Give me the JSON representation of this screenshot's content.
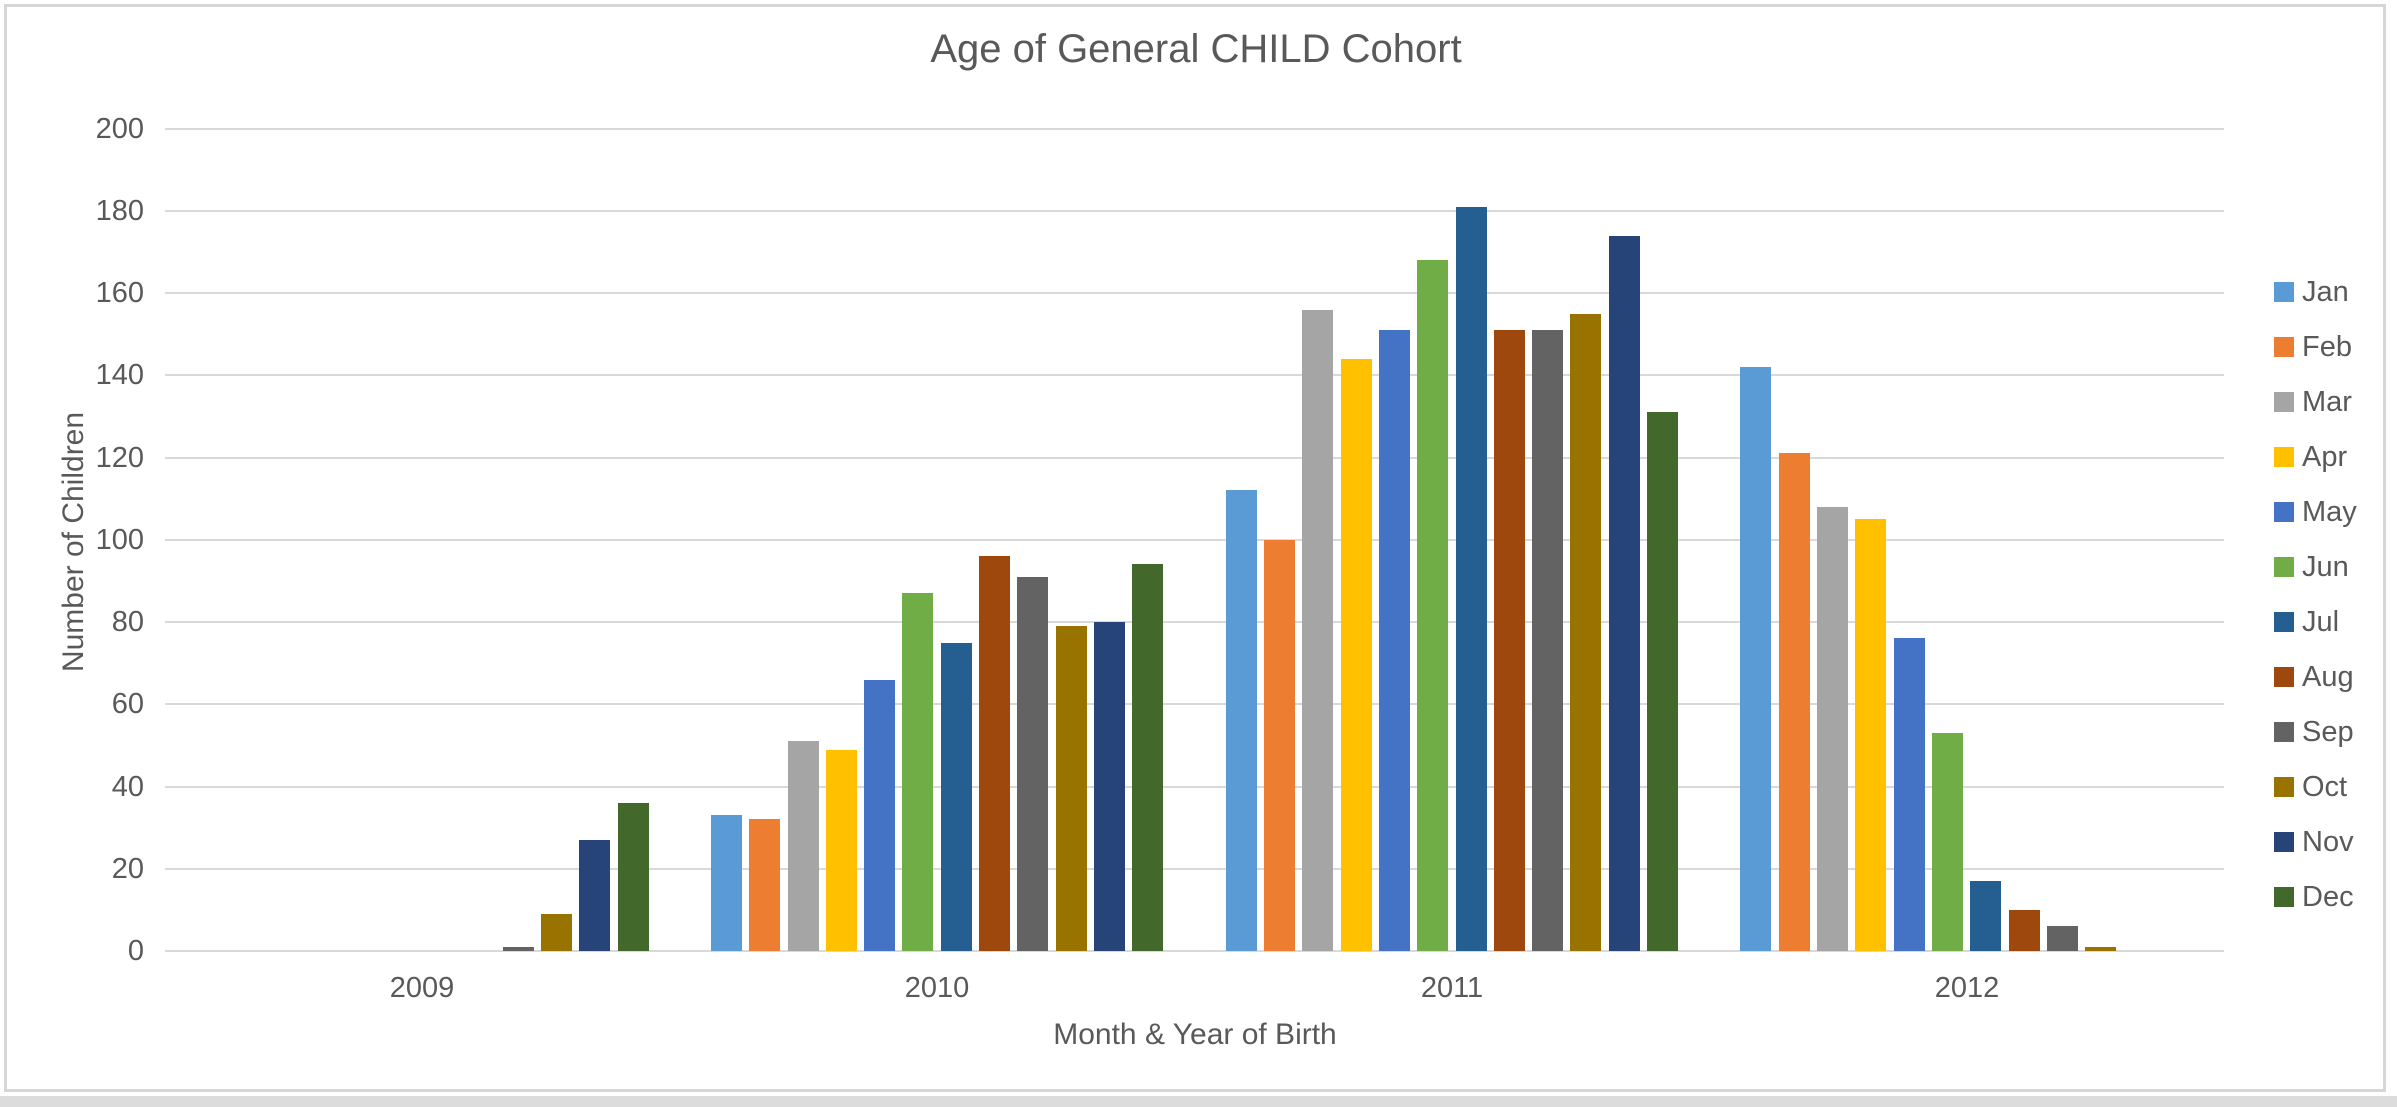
{
  "chart_data": {
    "type": "bar",
    "title": "Age of General CHILD Cohort",
    "xlabel": "Month & Year of Birth",
    "ylabel": "Number of Children",
    "ylim": [
      0,
      200
    ],
    "y_tick_step": 20,
    "y_ticks": [
      0,
      20,
      40,
      60,
      80,
      100,
      120,
      140,
      160,
      180,
      200
    ],
    "grid": true,
    "legend_position": "right",
    "categories": [
      "2009",
      "2010",
      "2011",
      "2012"
    ],
    "series": [
      {
        "name": "Jan",
        "color": "#5B9BD5",
        "values": [
          0,
          33,
          112,
          142
        ]
      },
      {
        "name": "Feb",
        "color": "#ED7D31",
        "values": [
          0,
          32,
          100,
          121
        ]
      },
      {
        "name": "Mar",
        "color": "#A5A5A5",
        "values": [
          0,
          51,
          156,
          108
        ]
      },
      {
        "name": "Apr",
        "color": "#FFC000",
        "values": [
          0,
          49,
          144,
          105
        ]
      },
      {
        "name": "May",
        "color": "#4472C4",
        "values": [
          0,
          66,
          151,
          76
        ]
      },
      {
        "name": "Jun",
        "color": "#70AD47",
        "values": [
          0,
          87,
          168,
          53
        ]
      },
      {
        "name": "Jul",
        "color": "#255E91",
        "values": [
          0,
          75,
          181,
          17
        ]
      },
      {
        "name": "Aug",
        "color": "#9E480E",
        "values": [
          0,
          96,
          151,
          10
        ]
      },
      {
        "name": "Sep",
        "color": "#636363",
        "values": [
          1,
          91,
          151,
          6
        ]
      },
      {
        "name": "Oct",
        "color": "#997300",
        "values": [
          9,
          79,
          155,
          1
        ]
      },
      {
        "name": "Nov",
        "color": "#264478",
        "values": [
          27,
          80,
          174,
          0
        ]
      },
      {
        "name": "Dec",
        "color": "#43682B",
        "values": [
          36,
          94,
          131,
          0
        ]
      }
    ]
  },
  "colors": {
    "text": "#595959",
    "gridline": "#D9D9D9",
    "frame_border": "#D6D6D6",
    "bottom_band": "#DCDCDC",
    "background": "#FFFFFF"
  }
}
